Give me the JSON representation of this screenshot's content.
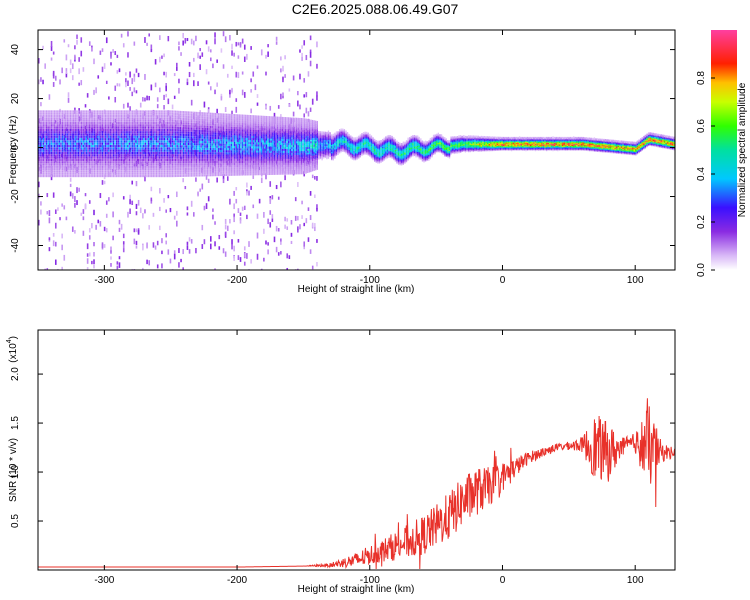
{
  "figure": {
    "title": "C2E6.2025.088.06.49.G07"
  },
  "chart_data": [
    {
      "type": "heatmap",
      "name": "spectrogram",
      "xlabel": "Height of straight line (km)",
      "ylabel": "Frequency (Hz)",
      "xlim": [
        -350,
        130
      ],
      "ylim": [
        -50,
        48
      ],
      "xticks": [
        -300,
        -200,
        -100,
        0,
        100
      ],
      "yticks": [
        -40,
        -20,
        0,
        20,
        40
      ],
      "colorbar": {
        "label": "Normalized spectral amplitude",
        "range": [
          0,
          1
        ],
        "ticks": [
          "0.0",
          "0.2",
          "0.4",
          "0.6",
          "0.8"
        ],
        "tick_values": [
          0.0,
          0.2,
          0.4,
          0.6,
          0.8
        ]
      },
      "ridge": {
        "description_points": [
          {
            "x": -350,
            "center_hz": 2,
            "halfwidth_hz": 6,
            "amplitude": 0.18
          },
          {
            "x": -250,
            "center_hz": 2,
            "halfwidth_hz": 6,
            "amplitude": 0.2
          },
          {
            "x": -150,
            "center_hz": 1,
            "halfwidth_hz": 5,
            "amplitude": 0.25
          },
          {
            "x": -120,
            "center_hz": 2,
            "halfwidth_hz": 3,
            "amplitude": 0.45
          },
          {
            "x": -80,
            "center_hz": -1,
            "halfwidth_hz": 3,
            "amplitude": 0.5
          },
          {
            "x": -30,
            "center_hz": 2,
            "halfwidth_hz": 2,
            "amplitude": 0.6
          },
          {
            "x": 0,
            "center_hz": 2,
            "halfwidth_hz": 1.5,
            "amplitude": 0.85
          },
          {
            "x": 60,
            "center_hz": 2,
            "halfwidth_hz": 1.5,
            "amplitude": 0.85
          },
          {
            "x": 100,
            "center_hz": 0,
            "halfwidth_hz": 1.5,
            "amplitude": 0.8
          },
          {
            "x": 110,
            "center_hz": 4,
            "halfwidth_hz": 1.5,
            "amplitude": 0.85
          },
          {
            "x": 130,
            "center_hz": 2,
            "halfwidth_hz": 1.5,
            "amplitude": 0.8
          }
        ],
        "scatter_noise_until_x": -140
      }
    },
    {
      "type": "line",
      "name": "snr",
      "xlabel": "Height of straight line (km)",
      "ylabel": "SNR (10 * v/v)",
      "multiplier_label": "(x10",
      "multiplier_exponent": "4",
      "multiplier_suffix": ")",
      "xlim": [
        -350,
        130
      ],
      "ylim": [
        0,
        2.45
      ],
      "xticks": [
        -300,
        -200,
        -100,
        0,
        100
      ],
      "yticks": [
        0.5,
        1.0,
        1.5,
        2.0
      ],
      "ytick_labels": [
        "0.5",
        "1.0",
        "1.5",
        "2.0"
      ],
      "color": "#e8312a",
      "series": [
        {
          "x": [
            -350,
            -300,
            -250,
            -200,
            -150,
            -130,
            -110,
            -100,
            -90,
            -80,
            -70,
            -60,
            -50,
            -40,
            -30,
            -20,
            -10,
            0,
            10,
            20,
            30,
            40,
            50,
            60,
            70,
            80,
            90,
            100,
            110,
            120,
            130
          ],
          "y": [
            0.03,
            0.03,
            0.03,
            0.03,
            0.04,
            0.05,
            0.1,
            0.15,
            0.2,
            0.25,
            0.3,
            0.35,
            0.45,
            0.55,
            0.7,
            0.8,
            0.85,
            0.95,
            1.05,
            1.15,
            1.2,
            1.25,
            1.27,
            1.28,
            1.25,
            1.2,
            1.25,
            1.3,
            1.25,
            1.2,
            1.2
          ],
          "noise": [
            0.0,
            0.0,
            0.0,
            0.0,
            0.0,
            0.02,
            0.08,
            0.1,
            0.12,
            0.15,
            0.18,
            0.2,
            0.22,
            0.25,
            0.25,
            0.25,
            0.2,
            0.15,
            0.1,
            0.06,
            0.05,
            0.04,
            0.04,
            0.08,
            0.35,
            0.3,
            0.1,
            0.1,
            0.45,
            0.1,
            0.05
          ]
        }
      ]
    }
  ]
}
